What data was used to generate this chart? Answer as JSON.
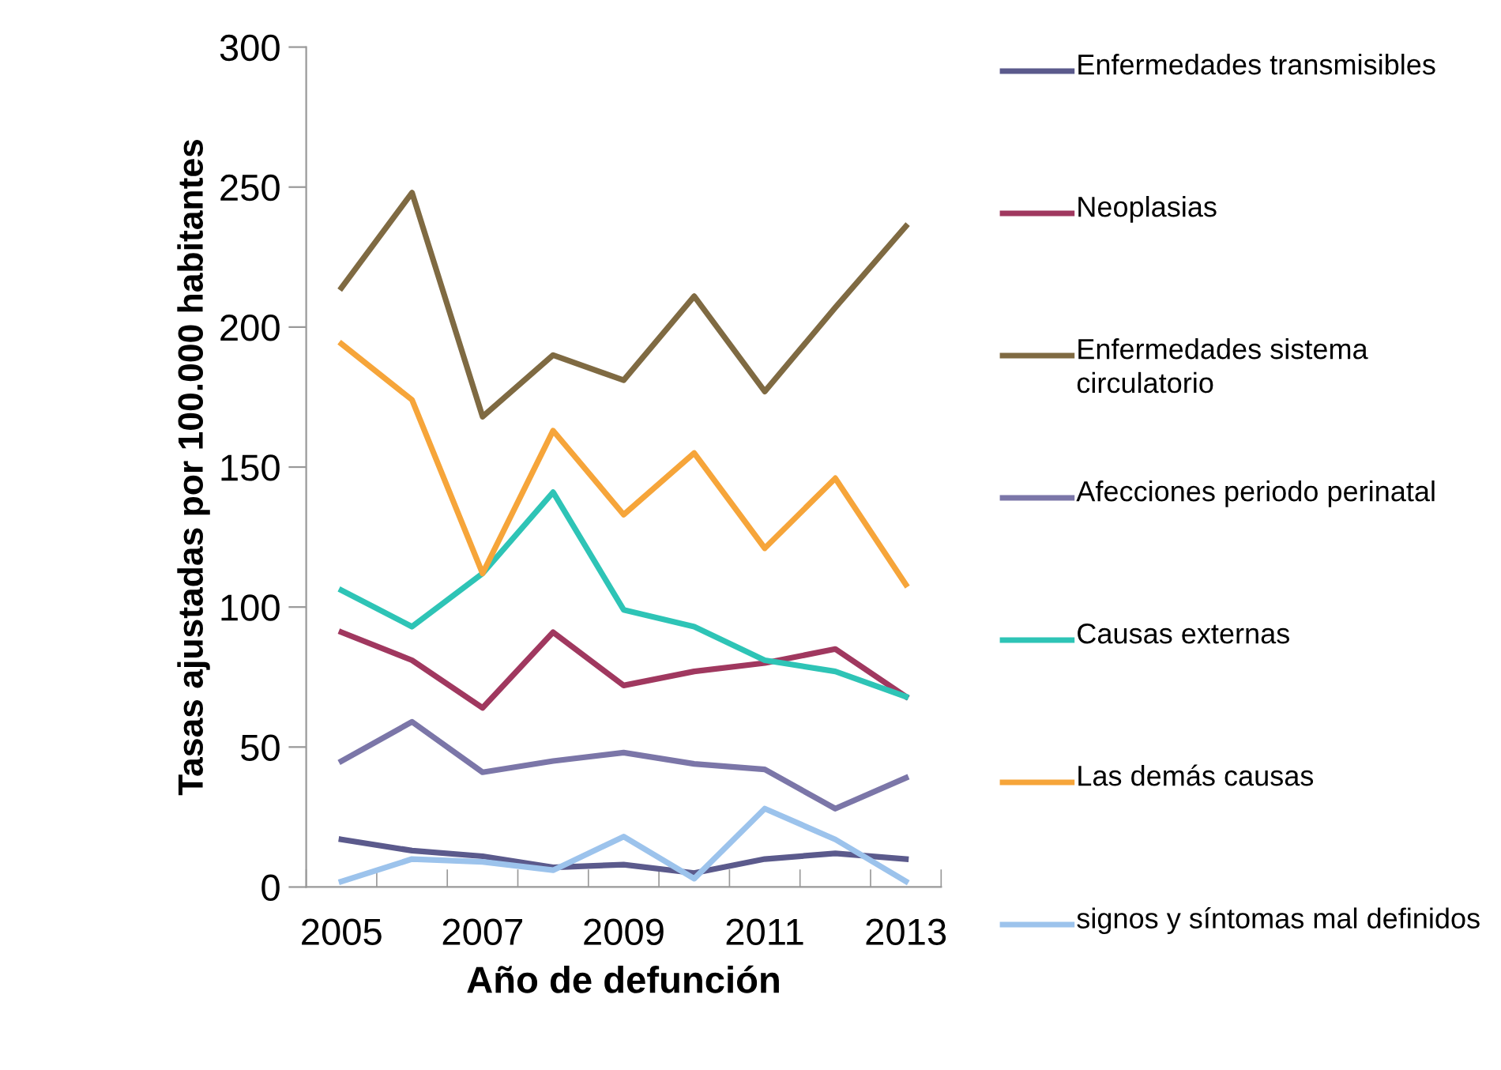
{
  "chart_data": {
    "type": "line",
    "xlabel": "Año de defunción",
    "ylabel": "Tasas ajustadas por 100.000 habitantes",
    "categories": [
      "2005",
      null,
      "2007",
      null,
      "2009",
      null,
      "2011",
      null,
      "2013"
    ],
    "ylim": [
      0,
      300
    ],
    "yticks": [
      0,
      50,
      100,
      150,
      200,
      250,
      300
    ],
    "grid": false,
    "legend": "right",
    "marker": "none",
    "line_style": "solid",
    "series": [
      {
        "name": "Enfermedades transmisibles",
        "color": "#5b5a8c",
        "values": [
          17,
          13,
          11,
          7,
          8,
          5,
          10,
          12,
          10
        ]
      },
      {
        "name": "Neoplasias",
        "color": "#a0385f",
        "values": [
          91,
          81,
          64,
          91,
          72,
          77,
          80,
          85,
          68
        ]
      },
      {
        "name": "Enfermedades sistema circulatorio",
        "color": "#7f6a42",
        "values": [
          214,
          248,
          168,
          190,
          181,
          211,
          177,
          207,
          236
        ]
      },
      {
        "name": "Afecciones periodo perinatal",
        "color": "#7b76a8",
        "values": [
          45,
          59,
          41,
          45,
          48,
          44,
          42,
          28,
          39
        ]
      },
      {
        "name": "Causas externas",
        "color": "#2ec4b6",
        "values": [
          106,
          93,
          112,
          141,
          99,
          93,
          81,
          77,
          68
        ]
      },
      {
        "name": "Las demás causas",
        "color": "#f6a53a",
        "values": [
          194,
          174,
          112,
          163,
          133,
          155,
          121,
          146,
          108
        ]
      },
      {
        "name": "signos y síntomas mal definidos",
        "color": "#9cc3ec",
        "values": [
          2,
          10,
          9,
          6,
          18,
          3,
          28,
          17,
          2
        ]
      }
    ]
  }
}
